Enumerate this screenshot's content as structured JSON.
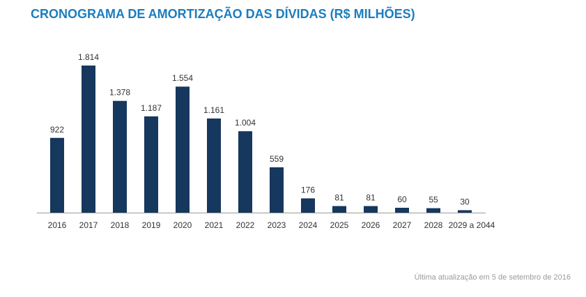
{
  "title": "CRONOGRAMA DE AMORTIZAÇÃO DAS DÍVIDAS (R$ MILHÕES)",
  "footer": "Última atualização em 5 de setembro de 2016",
  "colors": {
    "bar": "#16375e",
    "title": "#1b7dbf",
    "axis": "#999999",
    "text": "#333333",
    "footer": "#9a9a9a"
  },
  "chart_data": {
    "type": "bar",
    "title": "CRONOGRAMA DE AMORTIZAÇÃO DAS DÍVIDAS (R$ MILHÕES)",
    "categories": [
      "2016",
      "2017",
      "2018",
      "2019",
      "2020",
      "2021",
      "2022",
      "2023",
      "2024",
      "2025",
      "2026",
      "2027",
      "2028",
      "2029 a  2044"
    ],
    "values": [
      922,
      1814,
      1378,
      1187,
      1554,
      1161,
      1004,
      559,
      176,
      81,
      81,
      60,
      55,
      30
    ],
    "value_labels": [
      "922",
      "1.814",
      "1.378",
      "1.187",
      "1.554",
      "1.161",
      "1.004",
      "559",
      "176",
      "81",
      "81",
      "60",
      "55",
      "30"
    ],
    "xlabel": "",
    "ylabel": "",
    "ylim": [
      0,
      1814
    ],
    "grid": false,
    "legend": "none"
  }
}
